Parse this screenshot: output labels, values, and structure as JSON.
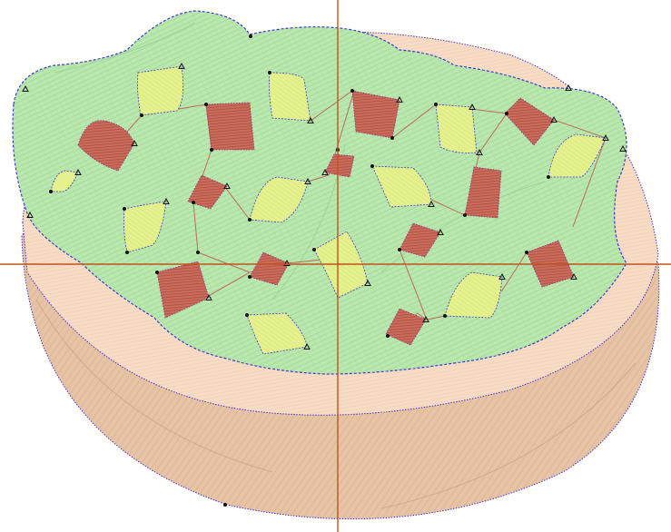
{
  "app": {
    "view": "embroidery-stitch-preview",
    "design": "salad-bowl"
  },
  "colors": {
    "background": "#ffffff",
    "bowl_body": "#e7c4a6",
    "bowl_body_stitch": "#d9ad8a",
    "bowl_rim": "#f6dcc6",
    "bowl_rim_stitch": "#edc8ac",
    "lettuce": "#b8e6ad",
    "lettuce_stitch": "#8fd18a",
    "tomato": "#c9705e",
    "tomato_stitch": "#b0453a",
    "cucumber": "#e4f08e",
    "cucumber_stitch": "#cfe06a",
    "outline_blue": "#3a2fd0",
    "outline_purple": "#8a2a9a",
    "jump_line": "#c0564a",
    "crosshair": "#c0531f"
  },
  "icons": {
    "node": "triangle-node-icon",
    "dot": "stitch-point-icon"
  }
}
